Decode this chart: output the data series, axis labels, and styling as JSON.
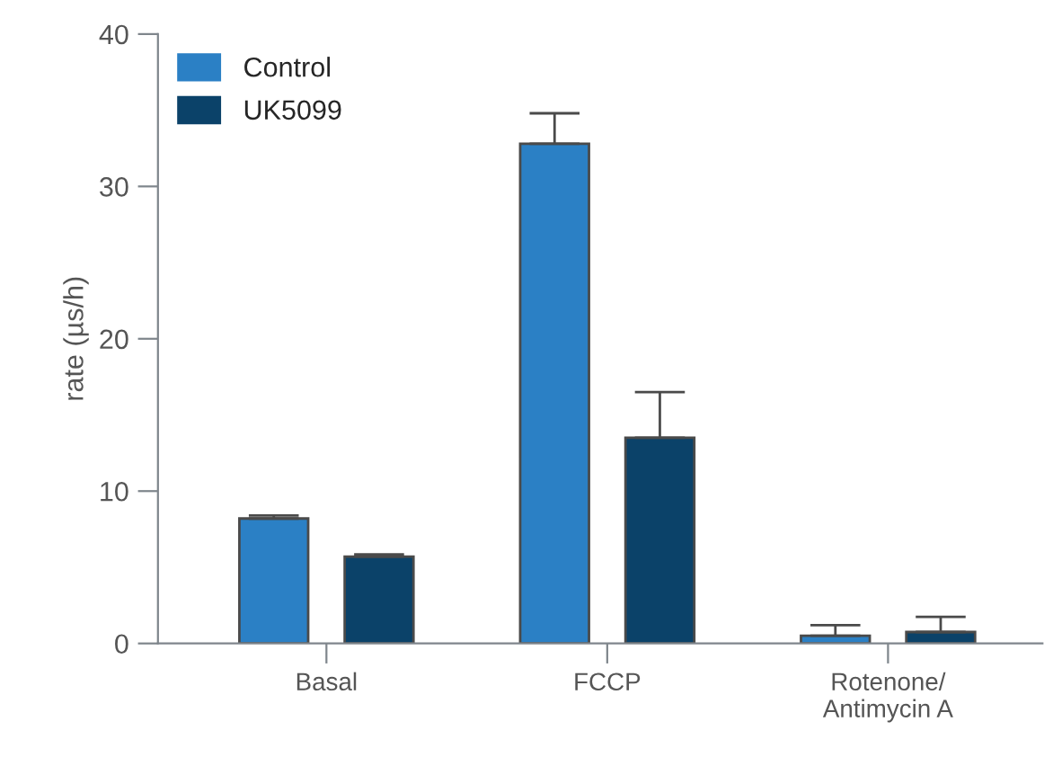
{
  "chart_data": {
    "type": "bar",
    "ylabel": "rate (µs/h)",
    "categories": [
      "Basal",
      "FCCP",
      "Rotenone/\nAntimycin A"
    ],
    "series": [
      {
        "name": "Control",
        "color": "#2b80c5",
        "values": [
          8.2,
          32.8,
          0.5
        ],
        "errors": [
          [
            8.2,
            8.4
          ],
          [
            32.8,
            34.8
          ],
          [
            0.5,
            1.2
          ]
        ]
      },
      {
        "name": "UK5099",
        "color": "#0b4269",
        "values": [
          5.7,
          13.5,
          0.75
        ],
        "errors": [
          [
            5.7,
            5.85
          ],
          [
            13.5,
            16.5
          ],
          [
            0.75,
            1.75
          ]
        ]
      }
    ],
    "ylim": [
      0,
      40
    ],
    "yticks": [
      0,
      10,
      20,
      30,
      40
    ],
    "grid": false,
    "legend": "top left"
  }
}
